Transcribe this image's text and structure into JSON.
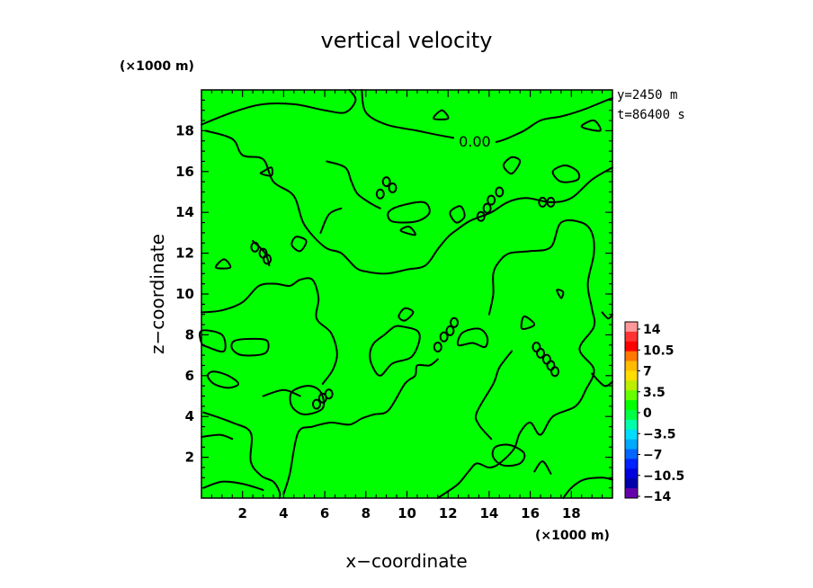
{
  "chart_data": {
    "type": "contour",
    "title": "vertical velocity",
    "xlabel": "x−coordinate",
    "ylabel": "z−coordinate",
    "x_unit": "(×1000 m)",
    "y_unit": "(×1000 m)",
    "xlim": [
      0,
      20
    ],
    "ylim": [
      0,
      20
    ],
    "x_ticks": [
      2,
      4,
      6,
      8,
      10,
      12,
      14,
      16,
      18
    ],
    "y_ticks": [
      2,
      4,
      6,
      8,
      10,
      12,
      14,
      16,
      18
    ],
    "info": [
      "y=2450  m",
      "t=86400  s"
    ],
    "contour_label": "0.00",
    "field_color": "#00ff00",
    "colorbar": {
      "labels": [
        "14",
        "10.5",
        "7",
        "3.5",
        "0",
        "−3.5",
        "−7",
        "−10.5",
        "−14"
      ],
      "colors": [
        "#ff9999",
        "#ff3333",
        "#ff0000",
        "#ff7700",
        "#ffbb00",
        "#ffdd00",
        "#bbee00",
        "#66ff00",
        "#00ff00",
        "#00ff44",
        "#00ffaa",
        "#00ddff",
        "#00aaff",
        "#0066ff",
        "#0022ff",
        "#0000dd",
        "#0000aa",
        "#6600aa"
      ]
    },
    "contour_lines": [
      [
        [
          0.0,
          18.3
        ],
        [
          1.5,
          18.9
        ],
        [
          3.0,
          19.3
        ],
        [
          4.5,
          19.3
        ],
        [
          6.0,
          19.0
        ],
        [
          7.0,
          18.9
        ],
        [
          7.5,
          19.5
        ],
        [
          7.2,
          20.0
        ]
      ],
      [
        [
          7.8,
          20.0
        ],
        [
          8.0,
          18.9
        ],
        [
          9.0,
          18.3
        ],
        [
          10.5,
          18.0
        ],
        [
          12.0,
          17.7
        ],
        [
          14.0,
          17.4
        ],
        [
          15.5,
          17.9
        ],
        [
          16.5,
          18.5
        ],
        [
          17.5,
          18.7
        ],
        [
          18.5,
          19.0
        ],
        [
          19.5,
          19.4
        ],
        [
          20.0,
          19.6
        ]
      ],
      [
        [
          0.2,
          18.0
        ],
        [
          1.5,
          17.6
        ],
        [
          2.0,
          16.8
        ],
        [
          3.0,
          16.6
        ],
        [
          3.5,
          15.5
        ],
        [
          4.5,
          14.8
        ],
        [
          5.0,
          13.4
        ],
        [
          6.0,
          12.3
        ],
        [
          6.8,
          12.0
        ],
        [
          7.5,
          11.3
        ],
        [
          8.0,
          11.1
        ],
        [
          9.0,
          11.0
        ],
        [
          10.0,
          11.2
        ],
        [
          10.9,
          11.4
        ],
        [
          11.5,
          12.2
        ],
        [
          12.0,
          12.8
        ],
        [
          12.5,
          13.2
        ],
        [
          13.1,
          13.6
        ],
        [
          14.1,
          14.0
        ],
        [
          14.9,
          14.5
        ],
        [
          15.8,
          14.7
        ],
        [
          17.0,
          14.5
        ],
        [
          18.0,
          14.7
        ],
        [
          19.0,
          15.6
        ],
        [
          20.0,
          16.2
        ]
      ],
      [
        [
          6.1,
          16.5
        ],
        [
          7.0,
          16.2
        ],
        [
          7.3,
          15.5
        ],
        [
          7.6,
          14.9
        ],
        [
          8.3,
          14.4
        ],
        [
          8.7,
          14.2
        ]
      ],
      [
        [
          6.8,
          14.2
        ],
        [
          6.2,
          13.9
        ],
        [
          5.8,
          13.0
        ]
      ],
      [
        [
          2.5,
          12.6
        ],
        [
          3.1,
          12.0
        ],
        [
          3.3,
          11.4
        ]
      ],
      [
        [
          0.0,
          9.1
        ],
        [
          1.0,
          9.2
        ],
        [
          2.0,
          9.6
        ],
        [
          2.8,
          10.4
        ],
        [
          3.6,
          10.5
        ],
        [
          4.3,
          10.4
        ],
        [
          4.8,
          10.7
        ],
        [
          5.4,
          10.7
        ],
        [
          5.7,
          9.8
        ],
        [
          5.6,
          8.8
        ],
        [
          6.3,
          8.1
        ],
        [
          6.6,
          7.1
        ],
        [
          6.4,
          6.3
        ],
        [
          5.9,
          5.6
        ]
      ],
      [
        [
          0.1,
          4.2
        ],
        [
          1.5,
          3.7
        ],
        [
          2.4,
          3.2
        ],
        [
          2.4,
          1.8
        ],
        [
          2.9,
          1.1
        ],
        [
          3.5,
          0.8
        ],
        [
          3.8,
          0.3
        ],
        [
          3.8,
          0.0
        ]
      ],
      [
        [
          3.0,
          5.0
        ],
        [
          4.0,
          5.3
        ],
        [
          4.8,
          5.0
        ]
      ],
      [
        [
          4.0,
          0.2
        ],
        [
          4.3,
          1.2
        ],
        [
          4.7,
          3.2
        ],
        [
          5.4,
          3.5
        ],
        [
          6.3,
          3.7
        ],
        [
          7.2,
          3.6
        ],
        [
          7.8,
          3.9
        ],
        [
          8.4,
          4.1
        ],
        [
          9.1,
          4.3
        ],
        [
          9.9,
          5.6
        ],
        [
          10.4,
          6.0
        ],
        [
          10.5,
          6.5
        ],
        [
          11.1,
          6.5
        ],
        [
          11.5,
          6.8
        ]
      ],
      [
        [
          14.0,
          9.0
        ],
        [
          14.2,
          10.0
        ],
        [
          14.2,
          11.0
        ],
        [
          14.5,
          11.6
        ],
        [
          15.0,
          12.0
        ],
        [
          16.0,
          12.1
        ],
        [
          17.0,
          12.3
        ],
        [
          17.5,
          13.5
        ],
        [
          18.5,
          13.5
        ],
        [
          19.0,
          13.0
        ],
        [
          19.1,
          12.0
        ],
        [
          18.8,
          10.5
        ],
        [
          19.0,
          9.3
        ],
        [
          19.1,
          8.4
        ],
        [
          18.4,
          7.3
        ],
        [
          19.1,
          6.3
        ],
        [
          18.7,
          5.3
        ],
        [
          18.2,
          4.5
        ],
        [
          17.1,
          4.0
        ],
        [
          16.5,
          3.1
        ],
        [
          16.0,
          3.7
        ],
        [
          15.5,
          3.2
        ],
        [
          15.2,
          2.4
        ],
        [
          14.5,
          1.7
        ],
        [
          14.0,
          1.5
        ],
        [
          13.4,
          1.7
        ],
        [
          13.0,
          1.3
        ],
        [
          12.5,
          0.7
        ],
        [
          11.8,
          0.2
        ],
        [
          11.5,
          0.0
        ]
      ],
      [
        [
          15.1,
          7.2
        ],
        [
          14.5,
          6.4
        ],
        [
          14.2,
          5.6
        ],
        [
          13.4,
          4.2
        ],
        [
          13.5,
          3.6
        ],
        [
          14.1,
          2.9
        ]
      ],
      [
        [
          0.0,
          3.0
        ],
        [
          0.9,
          3.1
        ],
        [
          1.5,
          2.9
        ]
      ],
      [
        [
          0.1,
          0.5
        ],
        [
          1.0,
          0.8
        ],
        [
          2.0,
          0.7
        ],
        [
          3.0,
          0.4
        ]
      ],
      [
        [
          17.6,
          0.0
        ],
        [
          18.0,
          0.5
        ],
        [
          18.6,
          0.9
        ],
        [
          19.5,
          1.0
        ],
        [
          20.0,
          0.9
        ]
      ],
      [
        [
          19.0,
          6.1
        ],
        [
          19.6,
          5.5
        ],
        [
          20.0,
          5.7
        ]
      ],
      [
        [
          16.2,
          1.3
        ],
        [
          16.6,
          1.8
        ],
        [
          17.0,
          1.2
        ]
      ],
      [
        [
          19.5,
          9.1
        ],
        [
          19.8,
          8.8
        ],
        [
          20.0,
          9.0
        ]
      ]
    ],
    "contour_loops": [
      [
        [
          3.0,
          16.0
        ],
        [
          3.4,
          16.2
        ],
        [
          3.4,
          15.8
        ],
        [
          2.9,
          15.9
        ]
      ],
      [
        [
          9.1,
          14.0
        ],
        [
          9.6,
          14.3
        ],
        [
          10.8,
          14.5
        ],
        [
          11.1,
          14.0
        ],
        [
          10.6,
          13.6
        ],
        [
          9.8,
          13.5
        ],
        [
          9.2,
          13.6
        ]
      ],
      [
        [
          14.7,
          16.3
        ],
        [
          15.1,
          16.7
        ],
        [
          15.5,
          16.5
        ],
        [
          15.1,
          15.9
        ]
      ],
      [
        [
          12.4,
          13.5
        ],
        [
          12.8,
          13.8
        ],
        [
          12.6,
          14.3
        ],
        [
          12.1,
          14.0
        ]
      ],
      [
        [
          4.6,
          12.8
        ],
        [
          5.1,
          12.6
        ],
        [
          4.8,
          12.1
        ],
        [
          4.4,
          12.4
        ]
      ],
      [
        [
          0.0,
          8.2
        ],
        [
          1.0,
          8.0
        ],
        [
          1.1,
          7.2
        ],
        [
          0.3,
          7.4
        ],
        [
          0.0,
          7.6
        ]
      ],
      [
        [
          1.6,
          7.7
        ],
        [
          2.5,
          7.8
        ],
        [
          3.2,
          7.7
        ],
        [
          3.1,
          7.1
        ],
        [
          2.0,
          7.0
        ],
        [
          1.5,
          7.3
        ]
      ],
      [
        [
          8.7,
          6.0
        ],
        [
          9.3,
          6.6
        ],
        [
          10.2,
          6.9
        ],
        [
          10.6,
          7.7
        ],
        [
          10.5,
          8.2
        ],
        [
          9.8,
          8.4
        ],
        [
          9.4,
          8.4
        ],
        [
          8.9,
          8.0
        ],
        [
          8.4,
          7.6
        ],
        [
          8.2,
          7.1
        ],
        [
          8.3,
          6.5
        ]
      ],
      [
        [
          9.6,
          8.9
        ],
        [
          9.9,
          9.3
        ],
        [
          10.3,
          9.1
        ],
        [
          9.9,
          8.7
        ]
      ],
      [
        [
          4.4,
          5.2
        ],
        [
          5.2,
          5.5
        ],
        [
          5.8,
          5.2
        ],
        [
          5.9,
          4.4
        ],
        [
          5.0,
          4.1
        ],
        [
          4.4,
          4.5
        ]
      ],
      [
        [
          0.6,
          6.2
        ],
        [
          1.3,
          6.0
        ],
        [
          1.8,
          5.6
        ],
        [
          1.3,
          5.4
        ],
        [
          0.6,
          5.6
        ],
        [
          0.3,
          6.0
        ]
      ],
      [
        [
          14.3,
          2.5
        ],
        [
          15.0,
          2.6
        ],
        [
          15.7,
          2.2
        ],
        [
          15.5,
          1.7
        ],
        [
          14.7,
          1.6
        ],
        [
          14.2,
          2.0
        ]
      ],
      [
        [
          15.6,
          8.3
        ],
        [
          15.7,
          8.9
        ],
        [
          16.2,
          8.5
        ]
      ],
      [
        [
          17.3,
          10.2
        ],
        [
          17.6,
          10.1
        ],
        [
          17.5,
          9.8
        ]
      ],
      [
        [
          12.5,
          7.5
        ],
        [
          13.2,
          7.6
        ],
        [
          13.8,
          7.4
        ],
        [
          13.9,
          7.9
        ],
        [
          13.5,
          8.3
        ],
        [
          12.7,
          8.1
        ]
      ],
      [
        [
          11.3,
          18.6
        ],
        [
          11.7,
          19.0
        ],
        [
          12.0,
          18.6
        ]
      ],
      [
        [
          18.5,
          18.2
        ],
        [
          19.1,
          18.5
        ],
        [
          19.4,
          18.0
        ]
      ],
      [
        [
          0.7,
          11.3
        ],
        [
          1.1,
          11.7
        ],
        [
          1.4,
          11.3
        ]
      ],
      [
        [
          9.7,
          13.1
        ],
        [
          10.1,
          13.3
        ],
        [
          10.4,
          12.9
        ]
      ],
      [
        [
          17.1,
          16.0
        ],
        [
          17.7,
          16.3
        ],
        [
          18.3,
          16.0
        ],
        [
          18.3,
          15.6
        ],
        [
          17.5,
          15.5
        ]
      ]
    ],
    "small_rings": [
      [
        9.0,
        15.5
      ],
      [
        9.3,
        15.2
      ],
      [
        8.7,
        14.9
      ],
      [
        14.5,
        15.0
      ],
      [
        14.1,
        14.6
      ],
      [
        13.9,
        14.2
      ],
      [
        13.6,
        13.8
      ],
      [
        2.6,
        12.3
      ],
      [
        3.0,
        12.0
      ],
      [
        3.2,
        11.7
      ],
      [
        5.6,
        4.6
      ],
      [
        5.9,
        4.9
      ],
      [
        6.2,
        5.1
      ],
      [
        11.5,
        7.4
      ],
      [
        11.8,
        7.9
      ],
      [
        12.1,
        8.2
      ],
      [
        12.3,
        8.6
      ],
      [
        16.3,
        7.4
      ],
      [
        16.5,
        7.1
      ],
      [
        16.8,
        6.8
      ],
      [
        17.0,
        6.5
      ],
      [
        17.2,
        6.2
      ],
      [
        17.0,
        14.5
      ],
      [
        16.6,
        14.5
      ]
    ],
    "label_anchors": [
      [
        13.3,
        17.5
      ],
      [
        9.0,
        15.2
      ],
      [
        14.2,
        14.5
      ],
      [
        2.9,
        12.1
      ],
      [
        5.8,
        4.9
      ],
      [
        11.8,
        7.9
      ],
      [
        16.7,
        7.0
      ]
    ]
  }
}
